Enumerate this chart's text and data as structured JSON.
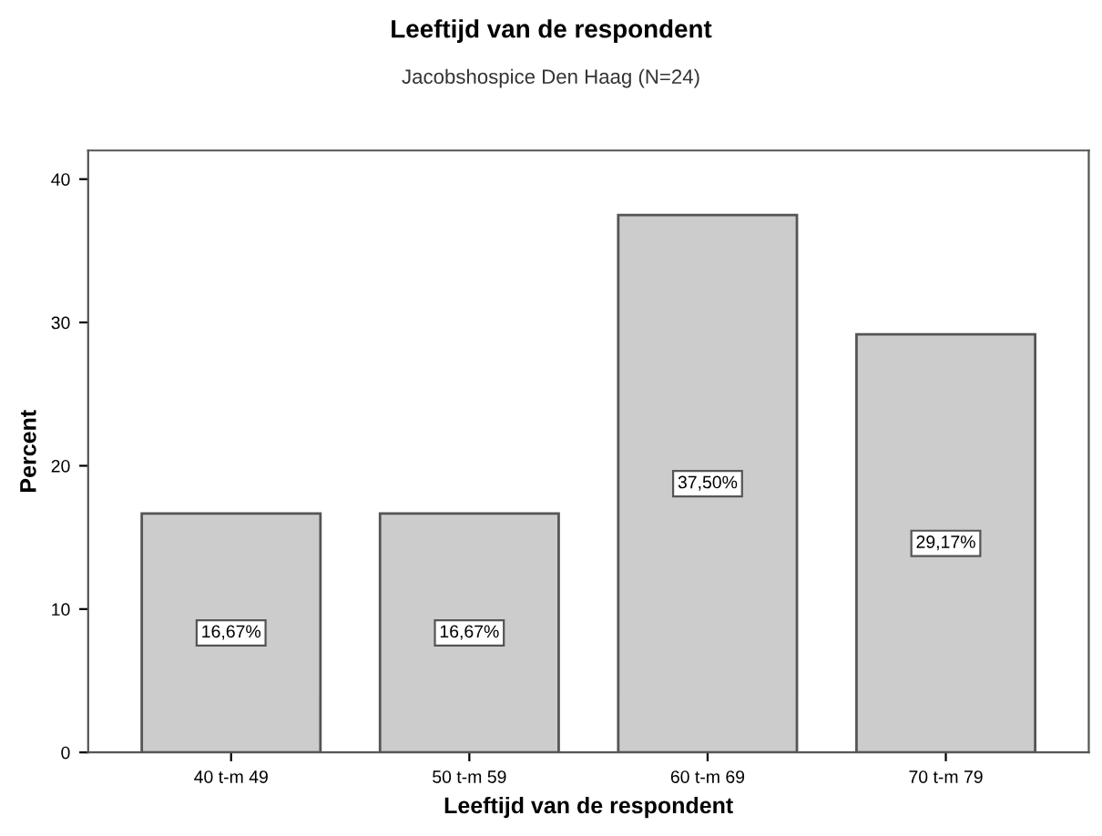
{
  "chart_data": {
    "type": "bar",
    "title": "Leeftijd van de respondent",
    "subtitle": "Jacobshospice Den Haag (N=24)",
    "xlabel": "Leeftijd van de respondent",
    "ylabel": "Percent",
    "categories": [
      "40 t-m 49",
      "50 t-m 59",
      "60 t-m 69",
      "70 t-m 79"
    ],
    "values": [
      16.67,
      16.67,
      37.5,
      29.17
    ],
    "value_labels": [
      "16,67%",
      "16,67%",
      "37,50%",
      "29,17%"
    ],
    "color": "#cccccc",
    "ylim": [
      0,
      42
    ],
    "yticks": [
      0,
      10,
      20,
      30,
      40
    ],
    "grid": false,
    "legend": false
  }
}
